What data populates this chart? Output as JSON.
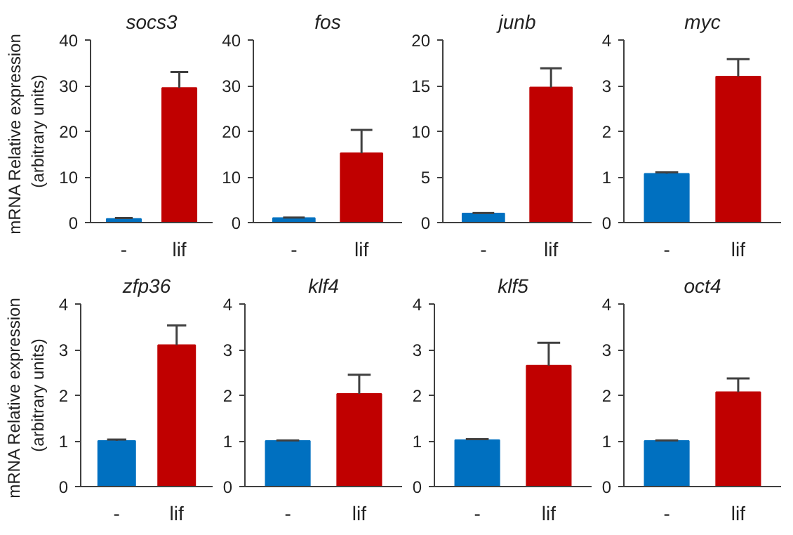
{
  "chart_data": [
    {
      "type": "bar",
      "title": "socs3",
      "ylabel": "mRNA  Relative expression\n(arbitrary units)",
      "categories": [
        "-",
        "lif"
      ],
      "values": [
        0.8,
        29.5
      ],
      "colors": [
        "#0070c0",
        "#c00000"
      ],
      "errors": [
        [
          0.8,
          1.0
        ],
        [
          29.5,
          33
        ]
      ],
      "ylim": [
        0,
        40
      ],
      "yticks": [
        0,
        10,
        20,
        30,
        40
      ],
      "grid": false
    },
    {
      "type": "bar",
      "title": "fos",
      "categories": [
        "-",
        "lif"
      ],
      "values": [
        1.0,
        15.2
      ],
      "colors": [
        "#0070c0",
        "#c00000"
      ],
      "errors": [
        [
          1.0,
          1.1
        ],
        [
          15.2,
          20.3
        ]
      ],
      "ylim": [
        0,
        40
      ],
      "yticks": [
        0,
        10,
        20,
        30,
        40
      ],
      "grid": false
    },
    {
      "type": "bar",
      "title": "junb",
      "categories": [
        "-",
        "lif"
      ],
      "values": [
        1.0,
        14.8
      ],
      "colors": [
        "#0070c0",
        "#c00000"
      ],
      "errors": [
        [
          1.0,
          1.05
        ],
        [
          14.8,
          16.9
        ]
      ],
      "ylim": [
        0,
        20
      ],
      "yticks": [
        0,
        5,
        10,
        15,
        20
      ],
      "grid": false
    },
    {
      "type": "bar",
      "title": "myc",
      "categories": [
        "-",
        "lif"
      ],
      "values": [
        1.07,
        3.2
      ],
      "colors": [
        "#0070c0",
        "#c00000"
      ],
      "errors": [
        [
          1.07,
          1.1
        ],
        [
          3.2,
          3.58
        ]
      ],
      "ylim": [
        0,
        4
      ],
      "yticks": [
        0,
        1,
        2,
        3,
        4
      ],
      "grid": false
    },
    {
      "type": "bar",
      "title": "zfp36",
      "ylabel": "mRNA  Relative expression\n(arbitrary units)",
      "categories": [
        "-",
        "lif"
      ],
      "values": [
        1.0,
        3.1
      ],
      "colors": [
        "#0070c0",
        "#c00000"
      ],
      "errors": [
        [
          1.0,
          1.03
        ],
        [
          3.1,
          3.53
        ]
      ],
      "ylim": [
        0,
        4
      ],
      "yticks": [
        0,
        1,
        2,
        3,
        4
      ],
      "grid": false
    },
    {
      "type": "bar",
      "title": "klf4",
      "categories": [
        "-",
        "lif"
      ],
      "values": [
        1.0,
        2.03
      ],
      "colors": [
        "#0070c0",
        "#c00000"
      ],
      "errors": [
        [
          1.0,
          1.01
        ],
        [
          2.03,
          2.45
        ]
      ],
      "ylim": [
        0,
        4
      ],
      "yticks": [
        0,
        1,
        2,
        3,
        4
      ],
      "grid": false
    },
    {
      "type": "bar",
      "title": "klf5",
      "categories": [
        "-",
        "lif"
      ],
      "values": [
        1.02,
        2.65
      ],
      "colors": [
        "#0070c0",
        "#c00000"
      ],
      "errors": [
        [
          1.02,
          1.04
        ],
        [
          2.65,
          3.15
        ]
      ],
      "ylim": [
        0,
        4
      ],
      "yticks": [
        0,
        1,
        2,
        3,
        4
      ],
      "grid": false
    },
    {
      "type": "bar",
      "title": "oct4",
      "categories": [
        "-",
        "lif"
      ],
      "values": [
        1.0,
        2.07
      ],
      "colors": [
        "#0070c0",
        "#c00000"
      ],
      "errors": [
        [
          1.0,
          1.01
        ],
        [
          2.07,
          2.37
        ]
      ],
      "ylim": [
        0,
        4
      ],
      "yticks": [
        0,
        1,
        2,
        3,
        4
      ],
      "grid": false
    }
  ]
}
